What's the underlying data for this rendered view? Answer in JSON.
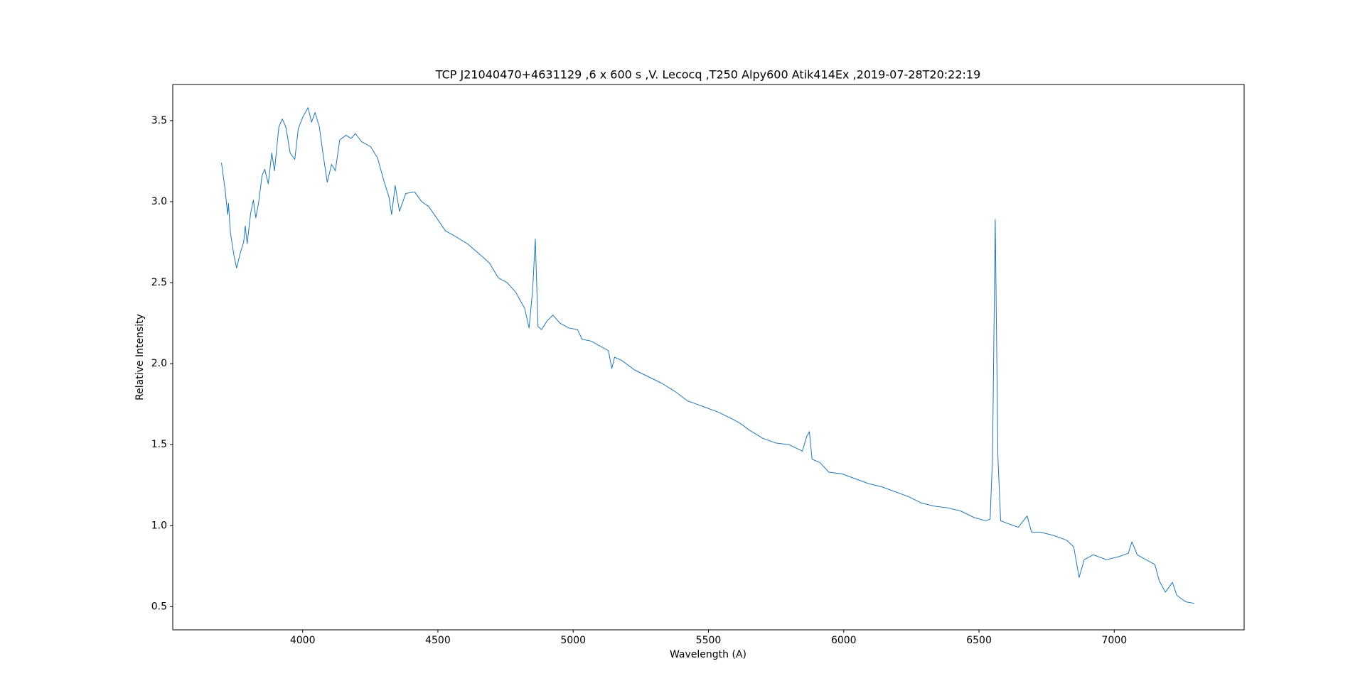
{
  "chart_data": {
    "type": "line",
    "title": "TCP J21040470+4631129 ,6 x 600 s ,V. Lecocq ,T250 Alpy600 Atik414Ex ,2019-07-28T20:22:19",
    "xlabel": "Wavelength (A)",
    "ylabel": "Relative Intensity",
    "color": "#1f77b4",
    "x": [
      3700,
      3713,
      3723,
      3726,
      3733,
      3746,
      3756,
      3769,
      3782,
      3788,
      3795,
      3808,
      3818,
      3827,
      3837,
      3850,
      3860,
      3873,
      3886,
      3896,
      3912,
      3925,
      3938,
      3954,
      3971,
      3984,
      4000,
      4020,
      4033,
      4046,
      4062,
      4075,
      4091,
      4107,
      4121,
      4137,
      4160,
      4179,
      4195,
      4218,
      4251,
      4277,
      4300,
      4319,
      4329,
      4342,
      4358,
      4381,
      4414,
      4440,
      4466,
      4495,
      4528,
      4560,
      4609,
      4658,
      4691,
      4723,
      4756,
      4788,
      4821,
      4837,
      4850,
      4860,
      4870,
      4883,
      4902,
      4925,
      4951,
      4984,
      5016,
      5033,
      5065,
      5098,
      5130,
      5143,
      5153,
      5179,
      5228,
      5277,
      5326,
      5375,
      5423,
      5456,
      5489,
      5537,
      5586,
      5619,
      5651,
      5700,
      5749,
      5798,
      5847,
      5863,
      5873,
      5883,
      5912,
      5945,
      5993,
      6042,
      6091,
      6140,
      6189,
      6238,
      6287,
      6336,
      6384,
      6433,
      6482,
      6524,
      6541,
      6550,
      6560,
      6570,
      6580,
      6612,
      6645,
      6678,
      6694,
      6726,
      6775,
      6824,
      6850,
      6870,
      6889,
      6922,
      6971,
      7020,
      7052,
      7065,
      7085,
      7117,
      7150,
      7166,
      7189,
      7215,
      7231,
      7264,
      7296
    ],
    "values": [
      3.24,
      3.08,
      2.92,
      2.99,
      2.81,
      2.67,
      2.59,
      2.68,
      2.75,
      2.85,
      2.74,
      2.93,
      3.01,
      2.9,
      2.99,
      3.16,
      3.2,
      3.11,
      3.3,
      3.19,
      3.46,
      3.51,
      3.46,
      3.3,
      3.26,
      3.45,
      3.52,
      3.58,
      3.49,
      3.55,
      3.46,
      3.3,
      3.12,
      3.23,
      3.19,
      3.38,
      3.41,
      3.39,
      3.42,
      3.37,
      3.34,
      3.27,
      3.13,
      3.03,
      2.92,
      3.1,
      2.94,
      3.05,
      3.06,
      3.0,
      2.97,
      2.9,
      2.82,
      2.79,
      2.74,
      2.67,
      2.62,
      2.53,
      2.5,
      2.44,
      2.34,
      2.22,
      2.45,
      2.77,
      2.23,
      2.21,
      2.26,
      2.3,
      2.25,
      2.22,
      2.21,
      2.15,
      2.14,
      2.11,
      2.08,
      1.97,
      2.04,
      2.02,
      1.96,
      1.92,
      1.88,
      1.83,
      1.77,
      1.75,
      1.73,
      1.7,
      1.66,
      1.63,
      1.59,
      1.54,
      1.51,
      1.5,
      1.46,
      1.55,
      1.58,
      1.41,
      1.39,
      1.33,
      1.32,
      1.29,
      1.26,
      1.24,
      1.21,
      1.18,
      1.14,
      1.12,
      1.11,
      1.09,
      1.05,
      1.03,
      1.04,
      1.42,
      2.89,
      1.42,
      1.03,
      1.01,
      0.99,
      1.06,
      0.96,
      0.96,
      0.94,
      0.91,
      0.87,
      0.68,
      0.79,
      0.82,
      0.79,
      0.81,
      0.83,
      0.9,
      0.82,
      0.79,
      0.76,
      0.66,
      0.59,
      0.65,
      0.57,
      0.53,
      0.52
    ],
    "xlim": [
      3520,
      7480
    ],
    "ylim": [
      0.357,
      3.723
    ],
    "xticks": [
      4000,
      4500,
      5000,
      5500,
      6000,
      6500,
      7000
    ],
    "yticks": [
      0.5,
      {
        "value": 1,
        "label": "1.0"
      },
      1.5,
      {
        "value": 2,
        "label": "2.0"
      },
      2.5,
      {
        "value": 3,
        "label": "3.0"
      },
      3.5
    ]
  }
}
